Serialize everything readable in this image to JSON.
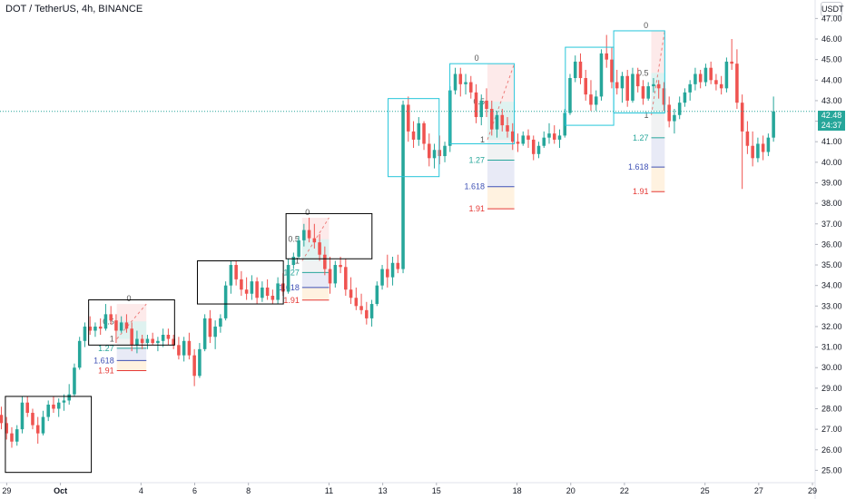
{
  "header": {
    "title": "DOT / TetherUS, 4h, BINANCE"
  },
  "currency": "USDT",
  "last_price": {
    "value": "42.48",
    "countdown": "24:37",
    "price": 42.48
  },
  "colors": {
    "up": "#26a69a",
    "down": "#ef5350",
    "box_black": "#000000",
    "box_cyan": "#26c6da",
    "fib_127": "#26a69a",
    "fib_1618": "#3f51b5",
    "fib_191": "#e53935",
    "current_line": "#26a69a"
  },
  "chart_data": {
    "type": "candlestick",
    "y_axis_labels": [
      "25.00",
      "26.00",
      "27.00",
      "28.00",
      "29.00",
      "30.00",
      "31.00",
      "32.00",
      "33.00",
      "34.00",
      "35.00",
      "36.00",
      "37.00",
      "38.00",
      "39.00",
      "40.00",
      "41.00",
      "42.00",
      "43.00",
      "44.00",
      "45.00",
      "46.00",
      "47.00"
    ],
    "ylim": [
      24.4,
      47.9
    ],
    "x_axis_labels": [
      {
        "label": "29",
        "day": 0
      },
      {
        "label": "Oct",
        "day": 2
      },
      {
        "label": "4",
        "day": 5
      },
      {
        "label": "6",
        "day": 7
      },
      {
        "label": "8",
        "day": 9
      },
      {
        "label": "11",
        "day": 12
      },
      {
        "label": "13",
        "day": 14
      },
      {
        "label": "15",
        "day": 16
      },
      {
        "label": "18",
        "day": 19
      },
      {
        "label": "20",
        "day": 21
      },
      {
        "label": "22",
        "day": 23
      },
      {
        "label": "25",
        "day": 26
      },
      {
        "label": "27",
        "day": 28
      },
      {
        "label": "29",
        "day": 30
      }
    ],
    "x_range_days": [
      -0.25,
      30.1
    ],
    "candles": [
      [
        27.7,
        28.1,
        27.0,
        27.3
      ],
      [
        27.3,
        27.6,
        26.5,
        26.8
      ],
      [
        26.8,
        27.1,
        26.1,
        26.4
      ],
      [
        26.4,
        27.2,
        26.2,
        27.0
      ],
      [
        27.0,
        28.6,
        26.8,
        28.3
      ],
      [
        28.3,
        28.6,
        27.6,
        27.8
      ],
      [
        27.8,
        28.0,
        27.0,
        27.2
      ],
      [
        27.2,
        27.6,
        26.3,
        26.8
      ],
      [
        26.8,
        27.9,
        26.7,
        27.6
      ],
      [
        27.6,
        28.4,
        27.4,
        28.2
      ],
      [
        28.2,
        28.6,
        27.8,
        28.0
      ],
      [
        28.0,
        28.5,
        27.6,
        28.3
      ],
      [
        28.3,
        28.7,
        27.9,
        28.4
      ],
      [
        28.4,
        29.2,
        28.2,
        28.7
      ],
      [
        28.7,
        30.2,
        28.6,
        30.0
      ],
      [
        30.0,
        31.5,
        29.9,
        31.3
      ],
      [
        31.3,
        32.2,
        31.0,
        32.0
      ],
      [
        32.0,
        32.5,
        31.6,
        31.8
      ],
      [
        31.8,
        32.2,
        31.5,
        32.0
      ],
      [
        32.0,
        32.4,
        31.6,
        31.9
      ],
      [
        31.9,
        33.1,
        31.8,
        32.6
      ],
      [
        32.6,
        33.0,
        32.1,
        32.3
      ],
      [
        32.3,
        32.6,
        31.2,
        31.8
      ],
      [
        31.8,
        32.5,
        31.7,
        32.2
      ],
      [
        32.2,
        32.6,
        31.7,
        31.9
      ],
      [
        31.9,
        32.2,
        30.8,
        31.1
      ],
      [
        31.1,
        31.8,
        30.7,
        31.4
      ],
      [
        31.4,
        31.6,
        30.9,
        31.2
      ],
      [
        31.2,
        31.6,
        30.9,
        31.4
      ],
      [
        31.4,
        31.7,
        31.1,
        31.2
      ],
      [
        31.2,
        31.5,
        30.8,
        31.3
      ],
      [
        31.3,
        31.9,
        31.0,
        31.6
      ],
      [
        31.6,
        31.9,
        31.1,
        31.4
      ],
      [
        31.4,
        31.6,
        30.9,
        31.1
      ],
      [
        31.1,
        31.5,
        30.4,
        30.6
      ],
      [
        30.6,
        31.5,
        30.3,
        31.3
      ],
      [
        31.3,
        31.7,
        30.4,
        30.6
      ],
      [
        30.6,
        30.9,
        29.1,
        29.6
      ],
      [
        29.6,
        31.2,
        29.5,
        30.9
      ],
      [
        30.9,
        32.6,
        30.8,
        32.4
      ],
      [
        32.4,
        32.8,
        31.2,
        31.5
      ],
      [
        31.5,
        32.3,
        30.9,
        32.0
      ],
      [
        32.0,
        32.6,
        31.7,
        32.4
      ],
      [
        32.4,
        34.2,
        32.3,
        34.0
      ],
      [
        34.0,
        35.2,
        33.6,
        35.0
      ],
      [
        35.0,
        35.2,
        34.0,
        34.3
      ],
      [
        34.3,
        34.7,
        33.5,
        33.8
      ],
      [
        33.8,
        34.4,
        33.3,
        33.6
      ],
      [
        33.6,
        34.5,
        33.3,
        34.2
      ],
      [
        34.2,
        34.4,
        33.1,
        33.4
      ],
      [
        33.4,
        34.2,
        33.2,
        33.9
      ],
      [
        33.9,
        34.3,
        33.3,
        33.5
      ],
      [
        33.5,
        33.8,
        33.1,
        33.3
      ],
      [
        33.3,
        34.4,
        33.1,
        34.1
      ],
      [
        34.1,
        34.6,
        33.5,
        33.7
      ],
      [
        33.7,
        35.3,
        33.6,
        35.0
      ],
      [
        35.0,
        35.6,
        34.8,
        35.4
      ],
      [
        35.4,
        36.4,
        35.3,
        36.2
      ],
      [
        36.2,
        37.0,
        35.9,
        36.7
      ],
      [
        36.7,
        37.3,
        36.1,
        36.3
      ],
      [
        36.3,
        37.0,
        35.8,
        36.1
      ],
      [
        36.1,
        36.5,
        35.2,
        35.5
      ],
      [
        35.5,
        35.9,
        34.5,
        34.8
      ],
      [
        34.8,
        35.4,
        33.6,
        34.1
      ],
      [
        34.1,
        35.2,
        33.9,
        35.0
      ],
      [
        35.0,
        35.4,
        34.6,
        34.9
      ],
      [
        34.9,
        35.3,
        33.5,
        33.8
      ],
      [
        33.8,
        34.4,
        33.1,
        33.4
      ],
      [
        33.4,
        33.9,
        32.8,
        33.0
      ],
      [
        33.0,
        33.6,
        32.6,
        32.8
      ],
      [
        32.8,
        33.2,
        32.1,
        32.4
      ],
      [
        32.4,
        33.3,
        32.0,
        33.1
      ],
      [
        33.1,
        34.2,
        33.0,
        34.0
      ],
      [
        34.0,
        35.0,
        33.8,
        34.8
      ],
      [
        34.8,
        35.5,
        33.9,
        34.4
      ],
      [
        34.4,
        35.4,
        34.0,
        35.1
      ],
      [
        35.1,
        35.5,
        34.6,
        34.8
      ],
      [
        34.8,
        43.0,
        34.6,
        42.8
      ],
      [
        42.8,
        43.2,
        41.0,
        41.5
      ],
      [
        41.5,
        42.0,
        40.7,
        41.1
      ],
      [
        41.1,
        42.2,
        40.8,
        41.9
      ],
      [
        41.9,
        42.0,
        40.6,
        40.9
      ],
      [
        40.9,
        41.4,
        39.8,
        40.2
      ],
      [
        40.2,
        40.9,
        39.7,
        40.6
      ],
      [
        40.6,
        41.3,
        39.9,
        40.3
      ],
      [
        40.3,
        41.0,
        40.0,
        40.8
      ],
      [
        40.8,
        43.7,
        40.5,
        43.5
      ],
      [
        43.5,
        44.6,
        43.3,
        44.3
      ],
      [
        44.3,
        44.6,
        43.2,
        43.8
      ],
      [
        43.8,
        44.3,
        43.3,
        43.9
      ],
      [
        43.9,
        44.2,
        43.1,
        43.4
      ],
      [
        43.4,
        43.8,
        41.9,
        42.2
      ],
      [
        42.2,
        43.3,
        41.8,
        43.0
      ],
      [
        43.0,
        43.6,
        42.2,
        42.6
      ],
      [
        42.6,
        43.0,
        41.3,
        41.6
      ],
      [
        41.6,
        42.5,
        41.2,
        42.3
      ],
      [
        42.3,
        42.6,
        41.5,
        41.8
      ],
      [
        41.8,
        42.2,
        41.2,
        41.5
      ],
      [
        41.5,
        41.9,
        40.6,
        41.0
      ],
      [
        41.0,
        41.4,
        40.5,
        40.9
      ],
      [
        40.9,
        41.5,
        40.8,
        41.3
      ],
      [
        41.3,
        41.6,
        40.7,
        41.1
      ],
      [
        41.1,
        41.3,
        40.1,
        40.4
      ],
      [
        40.4,
        41.0,
        40.2,
        40.8
      ],
      [
        40.8,
        41.5,
        40.7,
        41.2
      ],
      [
        41.2,
        41.9,
        40.9,
        41.4
      ],
      [
        41.4,
        41.8,
        40.9,
        41.1
      ],
      [
        41.1,
        41.6,
        40.7,
        41.3
      ],
      [
        41.3,
        42.6,
        41.2,
        42.4
      ],
      [
        42.4,
        44.3,
        42.3,
        44.1
      ],
      [
        44.1,
        45.2,
        43.9,
        44.9
      ],
      [
        44.9,
        45.3,
        43.8,
        44.1
      ],
      [
        44.1,
        44.5,
        43.0,
        43.3
      ],
      [
        43.3,
        44.0,
        42.5,
        42.8
      ],
      [
        42.8,
        43.5,
        42.5,
        43.2
      ],
      [
        43.2,
        45.5,
        43.0,
        45.3
      ],
      [
        45.3,
        46.2,
        44.6,
        45.0
      ],
      [
        45.0,
        45.6,
        43.6,
        43.9
      ],
      [
        43.9,
        44.5,
        43.3,
        43.6
      ],
      [
        43.6,
        44.4,
        42.9,
        44.2
      ],
      [
        44.2,
        44.5,
        42.7,
        43.0
      ],
      [
        43.0,
        44.6,
        42.9,
        44.3
      ],
      [
        44.3,
        44.6,
        43.4,
        43.7
      ],
      [
        43.7,
        44.0,
        42.8,
        43.1
      ],
      [
        43.1,
        43.9,
        43.0,
        43.7
      ],
      [
        43.7,
        44.1,
        43.4,
        43.8
      ],
      [
        43.8,
        44.0,
        43.1,
        43.6
      ],
      [
        43.6,
        43.9,
        42.5,
        42.8
      ],
      [
        42.8,
        43.2,
        41.7,
        42.0
      ],
      [
        42.0,
        42.6,
        41.4,
        42.3
      ],
      [
        42.3,
        43.2,
        42.1,
        42.9
      ],
      [
        42.9,
        43.6,
        42.7,
        43.4
      ],
      [
        43.4,
        44.0,
        43.0,
        43.8
      ],
      [
        43.8,
        44.6,
        43.5,
        44.3
      ],
      [
        44.3,
        44.5,
        43.6,
        43.9
      ],
      [
        43.9,
        44.8,
        43.7,
        44.6
      ],
      [
        44.6,
        44.9,
        43.8,
        44.0
      ],
      [
        44.0,
        44.3,
        43.5,
        43.8
      ],
      [
        43.8,
        44.2,
        43.3,
        43.6
      ],
      [
        43.6,
        45.1,
        43.4,
        44.9
      ],
      [
        44.9,
        46.0,
        44.5,
        44.8
      ],
      [
        44.8,
        45.5,
        42.6,
        42.9
      ],
      [
        42.9,
        43.3,
        38.7,
        41.5
      ],
      [
        41.5,
        42.0,
        40.4,
        40.8
      ],
      [
        40.8,
        41.5,
        39.8,
        40.2
      ],
      [
        40.2,
        41.2,
        40.0,
        40.9
      ],
      [
        40.9,
        41.3,
        40.1,
        40.5
      ],
      [
        40.5,
        41.4,
        40.3,
        41.2
      ],
      [
        41.2,
        43.2,
        41.0,
        42.48
      ]
    ],
    "boxes": [
      {
        "day_start": -0.05,
        "day_end": 3.15,
        "top": 28.6,
        "bottom": 24.9,
        "style": "black"
      },
      {
        "day_start": 3.05,
        "day_end": 6.25,
        "top": 33.3,
        "bottom": 31.1,
        "style": "black"
      },
      {
        "day_start": 7.1,
        "day_end": 10.3,
        "top": 35.2,
        "bottom": 33.1,
        "style": "black"
      },
      {
        "day_start": 10.4,
        "day_end": 13.6,
        "top": 37.5,
        "bottom": 35.3,
        "style": "black"
      },
      {
        "day_start": 14.2,
        "day_end": 16.1,
        "top": 43.1,
        "bottom": 39.3,
        "style": "cyan"
      },
      {
        "day_start": 16.5,
        "day_end": 18.9,
        "top": 44.8,
        "bottom": 40.9,
        "style": "cyan"
      },
      {
        "day_start": 20.8,
        "day_end": 22.6,
        "top": 45.6,
        "bottom": 41.8,
        "style": "cyan"
      },
      {
        "day_start": 22.6,
        "day_end": 24.5,
        "top": 46.4,
        "bottom": 42.4,
        "style": "cyan"
      }
    ],
    "fib_tools": [
      {
        "day_start": 4.1,
        "day_end": 5.2,
        "p0": 33.1,
        "p1": 31.4,
        "label_level": "0",
        "zero_label_day": 4.55
      },
      {
        "day_start": 11.0,
        "day_end": 12.0,
        "p0": 37.3,
        "p1": 35.2,
        "label_level": "0",
        "zero_label_day": 11.2
      },
      {
        "day_start": 17.9,
        "day_end": 18.9,
        "p0": 44.8,
        "p1": 41.1,
        "label_level": "0",
        "zero_label_day": 17.5
      },
      {
        "day_start": 24.0,
        "day_end": 24.5,
        "p0": 46.4,
        "p1": 42.3,
        "label_level": "0",
        "zero_label_day": 23.8
      }
    ],
    "fib_levels": [
      {
        "label": "0",
        "ratio": 0
      },
      {
        "label": "0.5",
        "ratio": 0.5
      },
      {
        "label": "1",
        "ratio": 1
      },
      {
        "label": "1.27",
        "ratio": 1.27
      },
      {
        "label": "1.618",
        "ratio": 1.618
      },
      {
        "label": "1.91",
        "ratio": 1.91
      }
    ]
  }
}
